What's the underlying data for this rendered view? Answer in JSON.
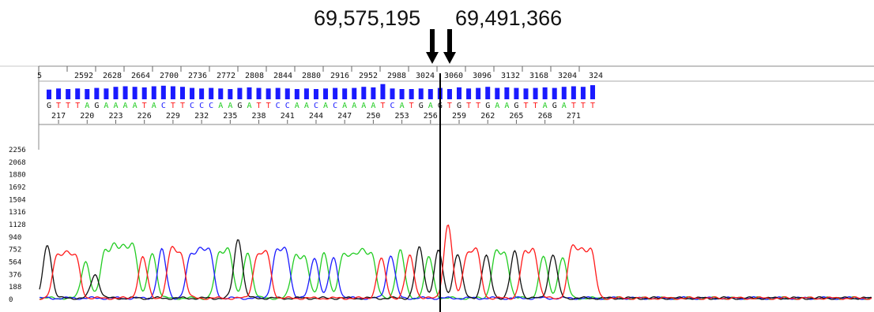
{
  "coords": {
    "left": "69,575,195",
    "right": "69,491,366"
  },
  "colors": {
    "A": "#22cc22",
    "C": "#1a1aff",
    "G": "#111111",
    "T": "#ff1a1a",
    "quality": "#1a1aff",
    "frame": "#888888",
    "panel_bg": "#ffffff"
  },
  "icons": [
    "left-breakpoint-arrow-icon",
    "right-breakpoint-arrow-icon"
  ],
  "chart_data": {
    "type": "line",
    "title": "",
    "xlabel": "",
    "ylabel": "",
    "scan_ticks": [
      "5",
      "2592",
      "2628",
      "2664",
      "2700",
      "2736",
      "2772",
      "2808",
      "2844",
      "2880",
      "2916",
      "2952",
      "2988",
      "3024",
      "3060",
      "3096",
      "3132",
      "3168",
      "3204",
      "324"
    ],
    "base_ticks": [
      "217",
      "220",
      "223",
      "226",
      "229",
      "232",
      "235",
      "238",
      "241",
      "244",
      "247",
      "250",
      "253",
      "256",
      "259",
      "262",
      "265",
      "268",
      "271"
    ],
    "bases_left": "GTTTAGAAAATACTTCCCAAGATTCCAA",
    "bases_right": "CACAAAATCATGAGTGTTGAAGTTAGATTT",
    "quality_levels": [
      0.45,
      0.55,
      0.5,
      0.55,
      0.5,
      0.6,
      0.55,
      0.7,
      0.75,
      0.7,
      0.65,
      0.75,
      0.8,
      0.75,
      0.7,
      0.6,
      0.55,
      0.6,
      0.55,
      0.5,
      0.6,
      0.65,
      0.6,
      0.55,
      0.6,
      0.55,
      0.5,
      0.55,
      0.5,
      0.55,
      0.6,
      0.55,
      0.6,
      0.7,
      0.65,
      0.95,
      0.55,
      0.5,
      0.5,
      0.55,
      0.5,
      0.6,
      0.5,
      0.65,
      0.55,
      0.6,
      0.7,
      0.6,
      0.65,
      0.6,
      0.55,
      0.6,
      0.65,
      0.6,
      0.7,
      0.75,
      0.7,
      0.85,
      0.8,
      0.75
    ],
    "y_ticks": [
      2256,
      2068,
      1880,
      1692,
      1504,
      1316,
      1128,
      940,
      752,
      564,
      376,
      188,
      0
    ],
    "ylim": [
      0,
      2256
    ],
    "peak_heights": [
      810,
      620,
      650,
      600,
      560,
      360,
      680,
      740,
      700,
      790,
      620,
      690,
      730,
      720,
      650,
      620,
      700,
      690,
      640,
      720,
      900,
      700,
      620,
      660,
      680,
      700,
      620,
      580,
      620,
      700,
      610,
      650,
      590,
      670,
      650,
      600,
      650,
      720,
      640,
      760,
      620,
      720,
      1110,
      670,
      650,
      700,
      640,
      660,
      630,
      700,
      640,
      700,
      630,
      660,
      620,
      740,
      680,
      700,
      660,
      560
    ]
  }
}
